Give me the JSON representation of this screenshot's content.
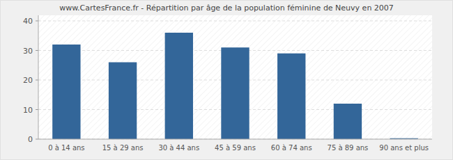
{
  "chart_data": {
    "type": "bar",
    "title": "www.CartesFrance.fr - Répartition par âge de la population féminine de Neuvy en 2007",
    "categories": [
      "0 à 14 ans",
      "15 à 29 ans",
      "30 à 44 ans",
      "45 à 59 ans",
      "60 à 74 ans",
      "75 à 89 ans",
      "90 ans et plus"
    ],
    "values": [
      32,
      26,
      36,
      31,
      29,
      12,
      0.3
    ],
    "color": "#336699",
    "ylim": [
      0,
      40
    ],
    "yticks": [
      0,
      10,
      20,
      30,
      40
    ],
    "grid": true
  }
}
